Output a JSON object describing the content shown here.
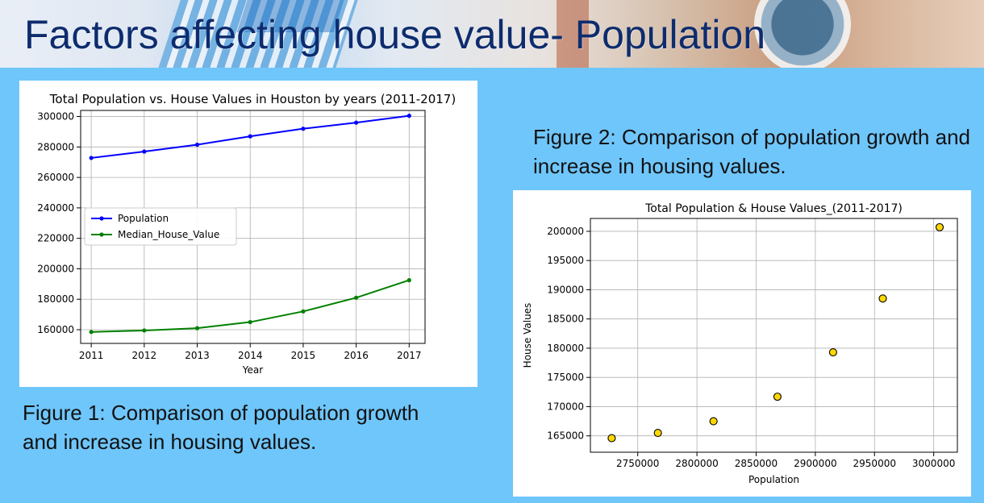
{
  "slide": {
    "title": "Factors affecting house value- Population",
    "caption1": "Figure 1: Comparison of population growth and increase in housing values.",
    "caption2": "Figure 2: Comparison of population growth and increase in housing values.",
    "background_color": "#6FC6FB",
    "title_color": "#0D2C6E"
  },
  "chart_data": [
    {
      "type": "line",
      "title": "Total Population vs. House Values in Houston by years (2011-2017)",
      "xlabel": "Year",
      "ylabel": "",
      "x": [
        2011,
        2012,
        2013,
        2014,
        2015,
        2016,
        2017
      ],
      "xlim": [
        2010.8,
        2017.3
      ],
      "ylim": [
        151000,
        304000
      ],
      "yticks": [
        160000,
        180000,
        200000,
        220000,
        240000,
        260000,
        280000,
        300000
      ],
      "grid": true,
      "legend": "center-left",
      "series": [
        {
          "name": "Population",
          "color": "#0000FF",
          "values": [
            272800,
            277000,
            281500,
            287000,
            292000,
            296000,
            300500
          ]
        },
        {
          "name": "Median_House_Value",
          "color": "#008000",
          "values": [
            158500,
            159500,
            161000,
            165000,
            172000,
            181000,
            192500
          ]
        }
      ]
    },
    {
      "type": "scatter",
      "title": "Total Population & House Values_(2011-2017)",
      "xlabel": "Population",
      "ylabel": "House Values",
      "xlim": [
        2710000,
        3020000
      ],
      "ylim": [
        162200,
        202200
      ],
      "xticks": [
        2750000,
        2800000,
        2850000,
        2900000,
        2950000,
        3000000
      ],
      "yticks": [
        165000,
        170000,
        175000,
        180000,
        185000,
        190000,
        195000,
        200000
      ],
      "grid": true,
      "marker_color": "#FFD700",
      "points": [
        {
          "x": 2728000,
          "y": 164600
        },
        {
          "x": 2767000,
          "y": 165500
        },
        {
          "x": 2814000,
          "y": 167500
        },
        {
          "x": 2868000,
          "y": 171700
        },
        {
          "x": 2915000,
          "y": 179300
        },
        {
          "x": 2957000,
          "y": 188500
        },
        {
          "x": 3005000,
          "y": 200700
        }
      ]
    }
  ]
}
